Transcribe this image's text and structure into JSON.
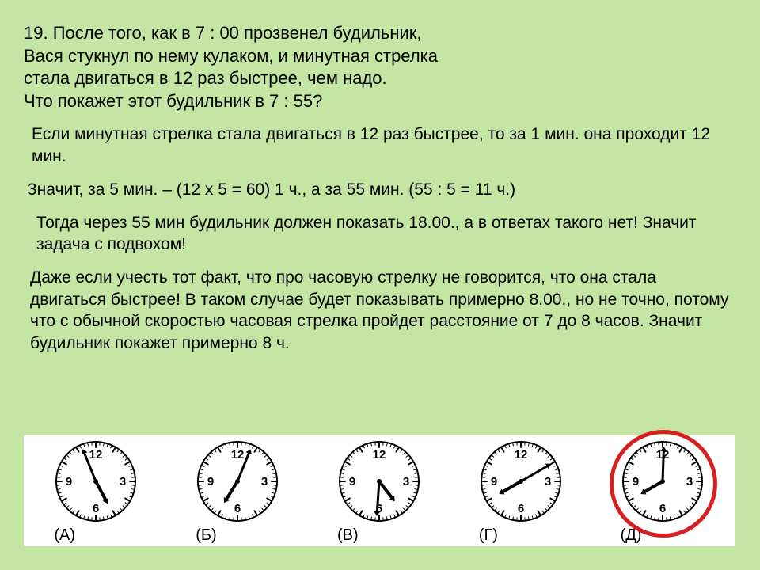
{
  "problem": {
    "line1": "19. После того, как в 7 : 00 прозвенел будильник,",
    "line2": "Вася стукнул по нему кулаком, и минутная стрелка",
    "line3": "стала двигаться в 12 раз быстрее, чем надо.",
    "line4": "Что покажет этот будильник в 7 : 55?"
  },
  "solution": {
    "p1": "Если минутная стрелка стала двигаться в 12 раз быстрее, то за 1 мин. она проходит 12 мин.",
    "p2": "Значит, за 5 мин. – (12 х 5 = 60) 1 ч., а за 55 мин. (55 : 5 = 11 ч.)",
    "p3": "Тогда через 55 мин будильник должен показать 18.00., а в ответах такого нет! Значит задача с подвохом!",
    "p4": "Даже если учесть тот факт, что про часовую стрелку не говорится, что она стала двигаться быстрее! В таком случае будет показывать примерно 8.00., но не точно, потому что с обычной скоростью часовая стрелка пройдет расстояние от 7 до 8 часов.  Значит будильник покажет примерно 8 ч."
  },
  "clocks": {
    "face": {
      "radius": 50,
      "stroke": "#000000",
      "stroke_width": 2,
      "fill": "#ffffff",
      "tick_len_major": 6,
      "tick_len_minor": 3,
      "num_font_size": 15,
      "hour_hand_len": 26,
      "minute_hand_len": 38,
      "hand_width": 4
    },
    "options": [
      {
        "label": "(А)",
        "hour_angle": 152,
        "minute_angle": -22,
        "circled": false
      },
      {
        "label": "(Б)",
        "hour_angle": -148,
        "minute_angle": 22,
        "circled": false
      },
      {
        "label": "(В)",
        "hour_angle": 142,
        "minute_angle": 184,
        "circled": false
      },
      {
        "label": "(Г)",
        "hour_angle": -120,
        "minute_angle": 60,
        "circled": false
      },
      {
        "label": "(Д)",
        "hour_angle": -120,
        "minute_angle": 2,
        "circled": true
      }
    ],
    "numerals": {
      "12": "12",
      "3": "3",
      "6": "6",
      "9": "9"
    },
    "answer_circle_color": "#d42020"
  }
}
